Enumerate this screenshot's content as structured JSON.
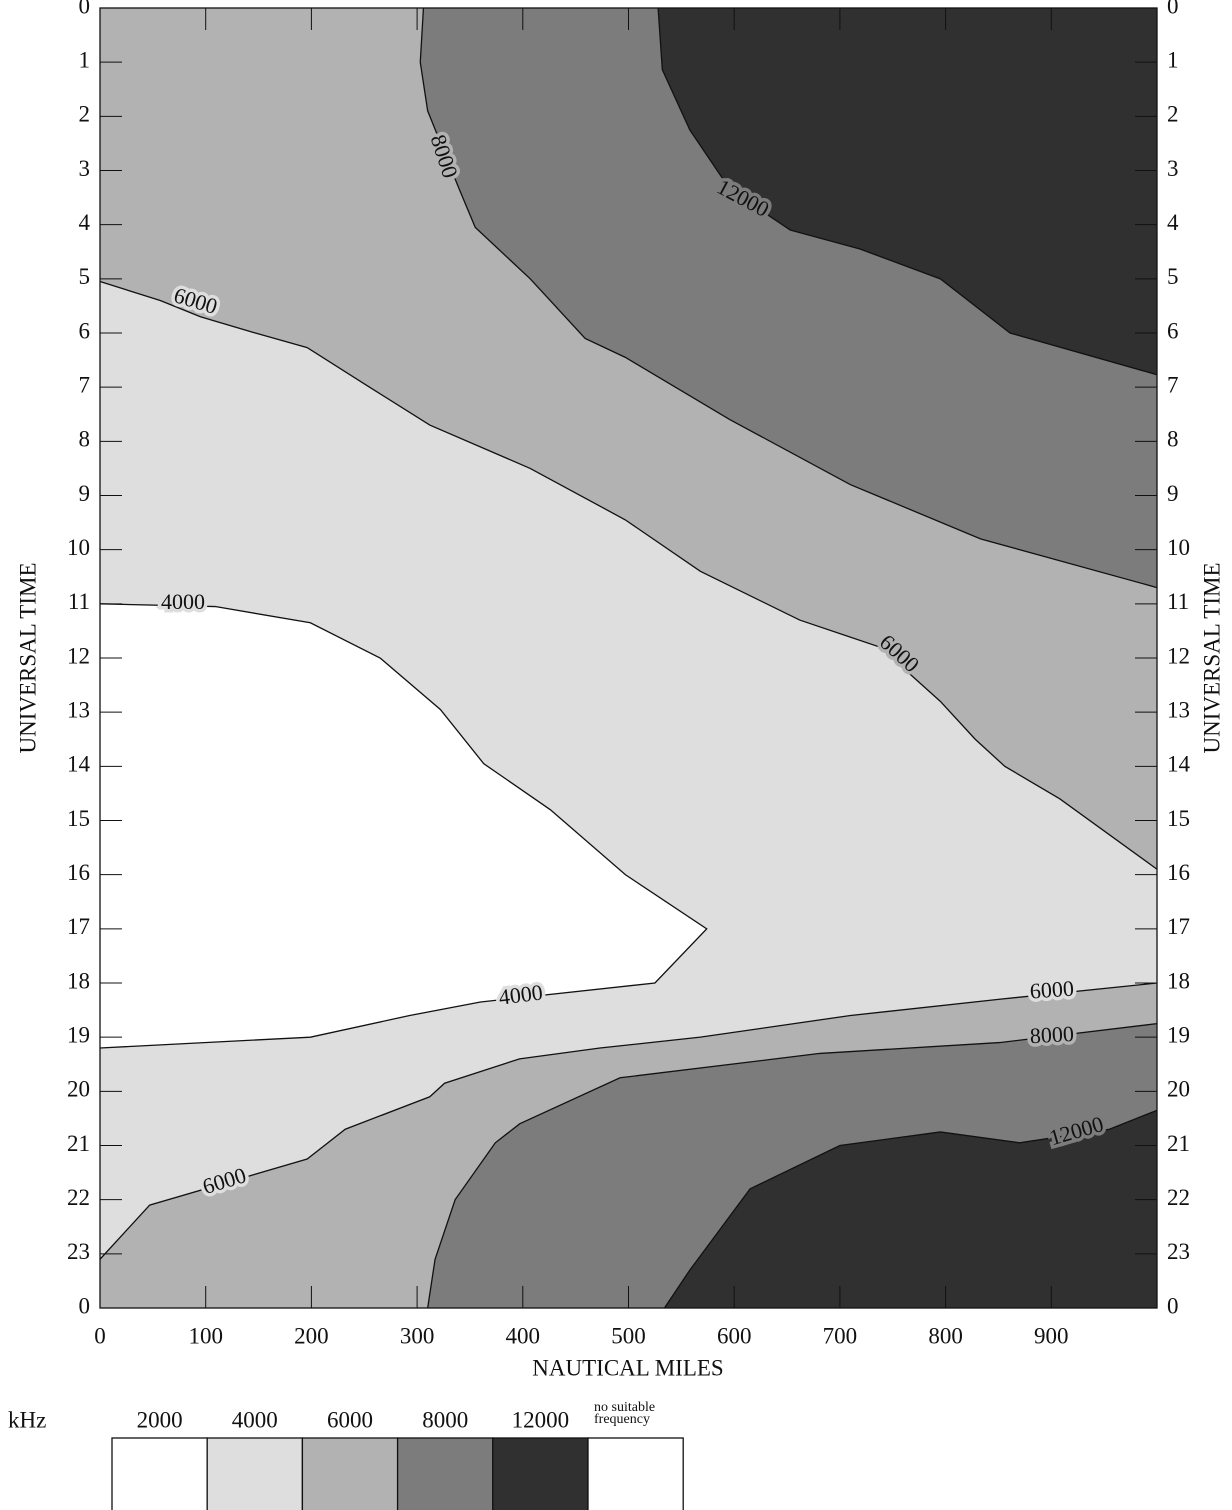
{
  "chart_data": {
    "type": "contour",
    "xlabel": "NAUTICAL MILES",
    "ylabel": "UNIVERSAL TIME",
    "xlim": [
      0,
      1000
    ],
    "ylim": [
      0,
      24
    ],
    "xticks": [
      0,
      100,
      200,
      300,
      400,
      500,
      600,
      700,
      800,
      900
    ],
    "yticks": [
      0,
      1,
      2,
      3,
      4,
      5,
      6,
      7,
      8,
      9,
      10,
      11,
      12,
      13,
      14,
      15,
      16,
      17,
      18,
      19,
      20,
      21,
      22,
      23,
      {
        "value": 24,
        "label": "0"
      }
    ],
    "series": [
      {
        "label": "6000",
        "x": [
          0,
          57,
          95,
          147,
          196,
          255,
          312,
          407,
          497,
          568,
          662,
          738,
          795,
          828,
          856,
          908,
          1000
        ],
        "values": [
          5.05,
          5.4,
          5.7,
          6.0,
          6.27,
          7.0,
          7.7,
          8.5,
          9.45,
          10.4,
          11.3,
          11.8,
          12.8,
          13.5,
          14.0,
          14.6,
          15.9
        ]
      },
      {
        "label": "8000",
        "x": [
          306,
          303,
          310,
          340,
          355,
          407,
          459,
          497,
          596,
          710,
          833,
          1000
        ],
        "values": [
          0,
          1,
          1.9,
          3.35,
          4.05,
          5.0,
          6.1,
          6.45,
          7.6,
          8.8,
          9.8,
          10.7
        ]
      },
      {
        "label": "12000",
        "x": [
          528,
          532,
          558,
          596,
          653,
          719,
          795,
          861,
          1000
        ],
        "values": [
          0,
          1.14,
          2.25,
          3.35,
          4.1,
          4.45,
          5.0,
          6.0,
          6.77
        ]
      },
      {
        "label": "4000",
        "x": [
          0,
          109,
          199,
          265,
          322,
          363,
          426,
          497,
          574,
          525,
          360,
          293,
          199,
          0
        ],
        "values": [
          11.0,
          11.05,
          11.35,
          12.0,
          12.95,
          13.95,
          14.8,
          16.0,
          17.0,
          18.0,
          18.35,
          18.6,
          19.0,
          19.2
        ]
      },
      {
        "label": "6000",
        "x": [
          1000,
          851,
          710,
          568,
          473,
          397,
          326,
          312,
          232,
          196,
          47,
          0
        ],
        "values": [
          18.0,
          18.3,
          18.6,
          19.0,
          19.2,
          19.4,
          19.85,
          20.1,
          20.7,
          21.25,
          22.1,
          23.1
        ]
      },
      {
        "label": "8000",
        "x": [
          1000,
          851,
          681,
          492,
          397,
          374,
          336,
          317,
          310
        ],
        "values": [
          18.75,
          19.1,
          19.3,
          19.75,
          20.6,
          20.95,
          22.0,
          23.1,
          24
        ]
      },
      {
        "label": "12000",
        "x": [
          1000,
          955,
          870,
          795,
          700,
          615,
          558,
          534
        ],
        "values": [
          20.35,
          20.7,
          20.95,
          20.75,
          21.0,
          21.8,
          23.3,
          24
        ]
      }
    ],
    "legend": {
      "title": "kHz",
      "items": [
        {
          "label": "2000",
          "color": "#ffffff"
        },
        {
          "label": "4000",
          "color": "#dedede"
        },
        {
          "label": "6000",
          "color": "#b2b2b2"
        },
        {
          "label": "8000",
          "color": "#7c7c7c"
        },
        {
          "label": "12000",
          "color": "#303030"
        },
        {
          "label": "no suitable frequency",
          "color": "#ffffff"
        }
      ]
    }
  }
}
